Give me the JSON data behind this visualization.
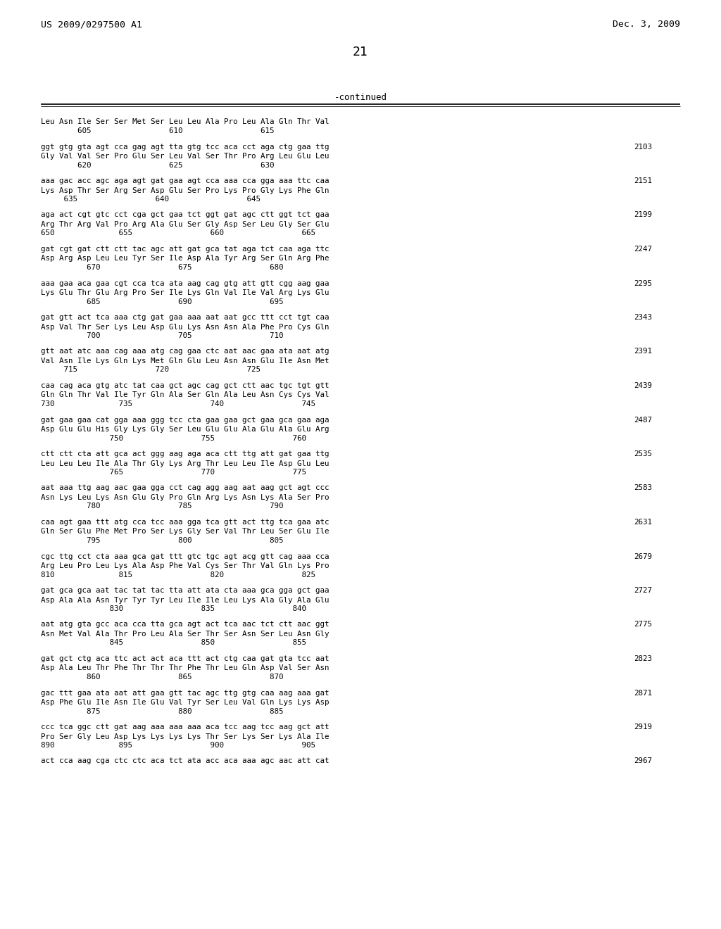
{
  "header_left": "US 2009/0297500 A1",
  "header_right": "Dec. 3, 2009",
  "page_number": "21",
  "continued_label": "-continued",
  "background_color": "#ffffff",
  "text_color": "#000000",
  "content": [
    {
      "type": "header_row",
      "text": "Leu Asn Ile Ser Ser Met Ser Leu Leu Ala Pro Leu Ala Gln Thr Val"
    },
    {
      "type": "number_row",
      "text": "        605                 610                 615"
    },
    {
      "type": "blank"
    },
    {
      "type": "dna_row",
      "text": "ggt gtg gta agt cca gag agt tta gtg tcc aca cct aga ctg gaa ttg",
      "num": "2103"
    },
    {
      "type": "aa_row",
      "text": "Gly Val Val Ser Pro Glu Ser Leu Val Ser Thr Pro Arg Leu Glu Leu"
    },
    {
      "type": "number_row",
      "text": "        620                 625                 630"
    },
    {
      "type": "blank"
    },
    {
      "type": "dna_row",
      "text": "aaa gac acc agc aga agt gat gaa agt cca aaa cca gga aaa ttc caa",
      "num": "2151"
    },
    {
      "type": "aa_row",
      "text": "Lys Asp Thr Ser Arg Ser Asp Glu Ser Pro Lys Pro Gly Lys Phe Gln"
    },
    {
      "type": "number_row",
      "text": "     635                 640                 645"
    },
    {
      "type": "blank"
    },
    {
      "type": "dna_row",
      "text": "aga act cgt gtc cct cga gct gaa tct ggt gat agc ctt ggt tct gaa",
      "num": "2199"
    },
    {
      "type": "aa_row",
      "text": "Arg Thr Arg Val Pro Arg Ala Glu Ser Gly Asp Ser Leu Gly Ser Glu"
    },
    {
      "type": "number_row",
      "text": "650              655                 660                 665"
    },
    {
      "type": "blank"
    },
    {
      "type": "dna_row",
      "text": "gat cgt gat ctt ctt tac agc att gat gca tat aga tct caa aga ttc",
      "num": "2247"
    },
    {
      "type": "aa_row",
      "text": "Asp Arg Asp Leu Leu Tyr Ser Ile Asp Ala Tyr Arg Ser Gln Arg Phe"
    },
    {
      "type": "number_row",
      "text": "          670                 675                 680"
    },
    {
      "type": "blank"
    },
    {
      "type": "dna_row",
      "text": "aaa gaa aca gaa cgt cca tca ata aag cag gtg att gtt cgg aag gaa",
      "num": "2295"
    },
    {
      "type": "aa_row",
      "text": "Lys Glu Thr Glu Arg Pro Ser Ile Lys Gln Val Ile Val Arg Lys Glu"
    },
    {
      "type": "number_row",
      "text": "          685                 690                 695"
    },
    {
      "type": "blank"
    },
    {
      "type": "dna_row",
      "text": "gat gtt act tca aaa ctg gat gaa aaa aat aat gcc ttt cct tgt caa",
      "num": "2343"
    },
    {
      "type": "aa_row",
      "text": "Asp Val Thr Ser Lys Leu Asp Glu Lys Asn Asn Ala Phe Pro Cys Gln"
    },
    {
      "type": "number_row",
      "text": "          700                 705                 710"
    },
    {
      "type": "blank"
    },
    {
      "type": "dna_row",
      "text": "gtt aat atc aaa cag aaa atg cag gaa ctc aat aac gaa ata aat atg",
      "num": "2391"
    },
    {
      "type": "aa_row",
      "text": "Val Asn Ile Lys Gln Lys Met Gln Glu Leu Asn Asn Glu Ile Asn Met"
    },
    {
      "type": "number_row",
      "text": "     715                 720                 725"
    },
    {
      "type": "blank"
    },
    {
      "type": "dna_row",
      "text": "caa cag aca gtg atc tat caa gct agc cag gct ctt aac tgc tgt gtt",
      "num": "2439"
    },
    {
      "type": "aa_row",
      "text": "Gln Gln Thr Val Ile Tyr Gln Ala Ser Gln Ala Leu Asn Cys Cys Val"
    },
    {
      "type": "number_row",
      "text": "730              735                 740                 745"
    },
    {
      "type": "blank"
    },
    {
      "type": "dna_row",
      "text": "gat gaa gaa cat gga aaa ggg tcc cta gaa gaa gct gaa gca gaa aga",
      "num": "2487"
    },
    {
      "type": "aa_row",
      "text": "Asp Glu Glu His Gly Lys Gly Ser Leu Glu Glu Ala Glu Ala Glu Arg"
    },
    {
      "type": "number_row",
      "text": "               750                 755                 760"
    },
    {
      "type": "blank"
    },
    {
      "type": "dna_row",
      "text": "ctt ctt cta att gca act ggg aag aga aca ctt ttg att gat gaa ttg",
      "num": "2535"
    },
    {
      "type": "aa_row",
      "text": "Leu Leu Leu Ile Ala Thr Gly Lys Arg Thr Leu Leu Ile Asp Glu Leu"
    },
    {
      "type": "number_row",
      "text": "               765                 770                 775"
    },
    {
      "type": "blank"
    },
    {
      "type": "dna_row",
      "text": "aat aaa ttg aag aac gaa gga cct cag agg aag aat aag gct agt ccc",
      "num": "2583"
    },
    {
      "type": "aa_row",
      "text": "Asn Lys Leu Lys Asn Glu Gly Pro Gln Arg Lys Asn Lys Ala Ser Pro"
    },
    {
      "type": "number_row",
      "text": "          780                 785                 790"
    },
    {
      "type": "blank"
    },
    {
      "type": "dna_row",
      "text": "caa agt gaa ttt atg cca tcc aaa gga tca gtt act ttg tca gaa atc",
      "num": "2631"
    },
    {
      "type": "aa_row",
      "text": "Gln Ser Glu Phe Met Pro Ser Lys Gly Ser Val Thr Leu Ser Glu Ile"
    },
    {
      "type": "number_row",
      "text": "          795                 800                 805"
    },
    {
      "type": "blank"
    },
    {
      "type": "dna_row",
      "text": "cgc ttg cct cta aaa gca gat ttt gtc tgc agt acg gtt cag aaa cca",
      "num": "2679"
    },
    {
      "type": "aa_row",
      "text": "Arg Leu Pro Leu Lys Ala Asp Phe Val Cys Ser Thr Val Gln Lys Pro"
    },
    {
      "type": "number_row",
      "text": "810              815                 820                 825"
    },
    {
      "type": "blank"
    },
    {
      "type": "dna_row",
      "text": "gat gca gca aat tac tat tac tta att ata cta aaa gca gga gct gaa",
      "num": "2727"
    },
    {
      "type": "aa_row",
      "text": "Asp Ala Ala Asn Tyr Tyr Tyr Leu Ile Ile Leu Lys Ala Gly Ala Glu"
    },
    {
      "type": "number_row",
      "text": "               830                 835                 840"
    },
    {
      "type": "blank"
    },
    {
      "type": "dna_row",
      "text": "aat atg gta gcc aca cca tta gca agt act tca aac tct ctt aac ggt",
      "num": "2775"
    },
    {
      "type": "aa_row",
      "text": "Asn Met Val Ala Thr Pro Leu Ala Ser Thr Ser Asn Ser Leu Asn Gly"
    },
    {
      "type": "number_row",
      "text": "               845                 850                 855"
    },
    {
      "type": "blank"
    },
    {
      "type": "dna_row",
      "text": "gat gct ctg aca ttc act act aca ttt act ctg caa gat gta tcc aat",
      "num": "2823"
    },
    {
      "type": "aa_row",
      "text": "Asp Ala Leu Thr Phe Thr Thr Thr Phe Thr Leu Gln Asp Val Ser Asn"
    },
    {
      "type": "number_row",
      "text": "          860                 865                 870"
    },
    {
      "type": "blank"
    },
    {
      "type": "dna_row",
      "text": "gac ttt gaa ata aat att gaa gtt tac agc ttg gtg caa aag aaa gat",
      "num": "2871"
    },
    {
      "type": "aa_row",
      "text": "Asp Phe Glu Ile Asn Ile Glu Val Tyr Ser Leu Val Gln Lys Lys Asp"
    },
    {
      "type": "number_row",
      "text": "          875                 880                 885"
    },
    {
      "type": "blank"
    },
    {
      "type": "dna_row",
      "text": "ccc tca ggc ctt gat aag aaa aaa aaa aca tcc aag tcc aag gct att",
      "num": "2919"
    },
    {
      "type": "aa_row",
      "text": "Pro Ser Gly Leu Asp Lys Lys Lys Lys Thr Ser Lys Ser Lys Ala Ile"
    },
    {
      "type": "number_row",
      "text": "890              895                 900                 905"
    },
    {
      "type": "blank"
    },
    {
      "type": "dna_row",
      "text": "act cca aag cga ctc ctc aca tct ata acc aca aaa agc aac att cat",
      "num": "2967"
    },
    {
      "type": "aa_row",
      "text": ""
    }
  ]
}
